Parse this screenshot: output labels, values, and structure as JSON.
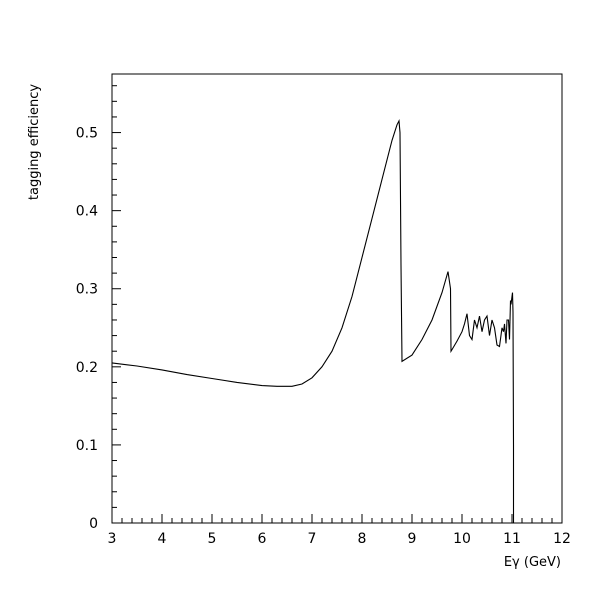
{
  "chart_data": {
    "type": "line",
    "title": "",
    "xlabel": "Eγ (GeV)",
    "ylabel": "tagging efficiency",
    "xlim": [
      3,
      12
    ],
    "ylim": [
      0,
      0.575
    ],
    "x_ticks": [
      3,
      4,
      5,
      6,
      7,
      8,
      9,
      10,
      11,
      12
    ],
    "x_tick_labels": [
      "3",
      "4",
      "5",
      "6",
      "7",
      "8",
      "9",
      "10",
      "11",
      "12"
    ],
    "y_ticks": [
      0,
      0.1,
      0.2,
      0.3,
      0.4,
      0.5
    ],
    "y_tick_labels": [
      "0",
      "0.1",
      "0.2",
      "0.3",
      "0.4",
      "0.5"
    ],
    "grid": false,
    "legend": "none",
    "line_color": "#000000",
    "series": [
      {
        "x": [
          3.0,
          3.5,
          4.0,
          4.5,
          5.0,
          5.5,
          6.0,
          6.3,
          6.6,
          6.8,
          7.0,
          7.2,
          7.4,
          7.6,
          7.8,
          8.0,
          8.2,
          8.4,
          8.6,
          8.7,
          8.74,
          8.76,
          8.78,
          8.8,
          9.0,
          9.2,
          9.4,
          9.6,
          9.72,
          9.77,
          9.78,
          9.8,
          9.9,
          10.0,
          10.05,
          10.1,
          10.15,
          10.2,
          10.25,
          10.3,
          10.35,
          10.4,
          10.45,
          10.5,
          10.55,
          10.6,
          10.65,
          10.7,
          10.75,
          10.8,
          10.83,
          10.85,
          10.88,
          10.9,
          10.93,
          10.95,
          10.97,
          10.98,
          11.0,
          11.01,
          11.02,
          11.03,
          11.03
        ],
        "y": [
          0.205,
          0.201,
          0.196,
          0.19,
          0.185,
          0.18,
          0.176,
          0.175,
          0.175,
          0.178,
          0.186,
          0.2,
          0.22,
          0.25,
          0.29,
          0.34,
          0.39,
          0.44,
          0.49,
          0.51,
          0.515,
          0.5,
          0.33,
          0.207,
          0.215,
          0.235,
          0.26,
          0.295,
          0.322,
          0.3,
          0.22,
          0.222,
          0.233,
          0.245,
          0.255,
          0.268,
          0.24,
          0.235,
          0.26,
          0.25,
          0.265,
          0.245,
          0.26,
          0.265,
          0.24,
          0.26,
          0.25,
          0.228,
          0.226,
          0.25,
          0.245,
          0.255,
          0.23,
          0.26,
          0.26,
          0.235,
          0.285,
          0.28,
          0.29,
          0.295,
          0.27,
          0.1,
          0.0
        ]
      }
    ]
  }
}
